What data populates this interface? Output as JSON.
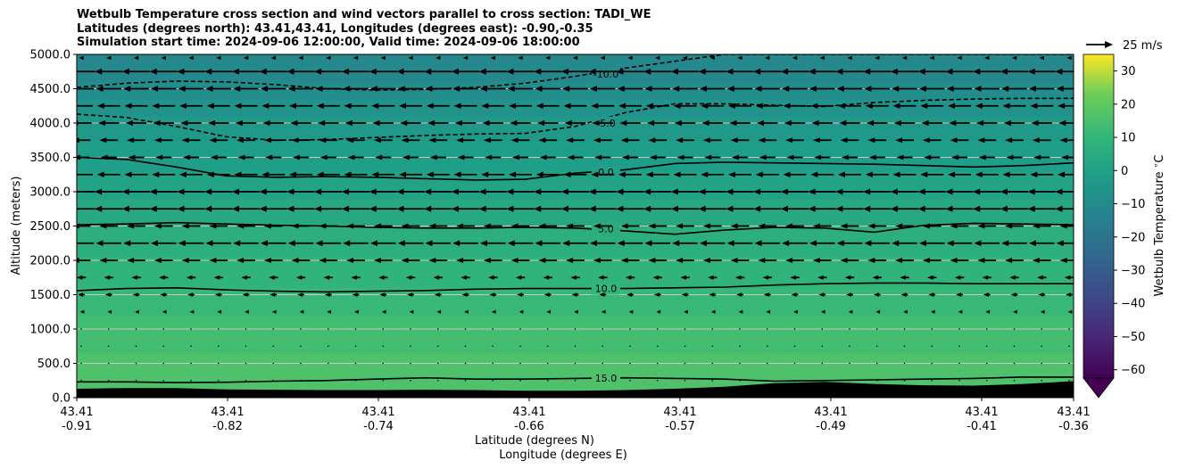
{
  "chart_data": {
    "type": "heatmap",
    "title_lines": [
      "Wetbulb Temperature cross section and wind vectors parallel to cross section: TADI_WE",
      "Latitudes (degrees north): 43.41,43.41, Longitudes (degrees east): -0.90,-0.35",
      "Simulation start time: 2024-09-06 12:00:00, Valid time: 2024-09-06 18:00:00"
    ],
    "ylabel": "Altitude (meters)",
    "xlabel_lat": "Latitude (degrees N)",
    "xlabel_lon": "Longitude (degrees E)",
    "ylim": [
      0,
      5000
    ],
    "y_ticks": [
      "0.0",
      "500.0",
      "1000.0",
      "1500.0",
      "2000.0",
      "2500.0",
      "3000.0",
      "3500.0",
      "4000.0",
      "4500.0",
      "5000.0"
    ],
    "y_tick_values": [
      0,
      500,
      1000,
      1500,
      2000,
      2500,
      3000,
      3500,
      4000,
      4500,
      5000
    ],
    "x_ticks": [
      {
        "lat": "43.41",
        "lon": "-0.91",
        "frac": 0.0
      },
      {
        "lat": "43.41",
        "lon": "-0.82",
        "frac": 0.1513
      },
      {
        "lat": "43.41",
        "lon": "-0.74",
        "frac": 0.3026
      },
      {
        "lat": "43.41",
        "lon": "-0.66",
        "frac": 0.4539
      },
      {
        "lat": "43.41",
        "lon": "-0.57",
        "frac": 0.6052
      },
      {
        "lat": "43.41",
        "lon": "-0.49",
        "frac": 0.7565
      },
      {
        "lat": "43.41",
        "lon": "-0.41",
        "frac": 0.9078
      },
      {
        "lat": "43.41",
        "lon": "-0.36",
        "frac": 1.0
      }
    ],
    "colorbar": {
      "label": "Wetbulb Temperature $^\\circ$C",
      "ticks": [
        "30",
        "20",
        "10",
        "0",
        "−10",
        "−20",
        "−30",
        "−40",
        "−50",
        "−60"
      ],
      "tick_values": [
        30,
        20,
        10,
        0,
        -10,
        -20,
        -30,
        -40,
        -50,
        -60
      ],
      "range": [
        -62.5,
        35
      ],
      "extend": "both"
    },
    "wind_key": {
      "label": "25 m/s"
    },
    "contours": [
      {
        "level": "-10.0",
        "style": "dashed",
        "alt": [
          4520,
          4580,
          4610,
          4600,
          4560,
          4500,
          4480,
          4490,
          4520,
          4580,
          4680,
          4800,
          4900,
          5000,
          5000,
          5000,
          5000,
          5000,
          5000,
          5000,
          5000
        ]
      },
      {
        "level": "-5.0",
        "style": "dashed",
        "alt": [
          4130,
          4080,
          3950,
          3800,
          3750,
          3760,
          3790,
          3820,
          3840,
          3850,
          3950,
          4150,
          4280,
          4280,
          4260,
          4240,
          4300,
          4330,
          4350,
          4360,
          4360
        ]
      },
      {
        "level": "0.0",
        "style": "solid",
        "alt": [
          3500,
          3470,
          3360,
          3230,
          3210,
          3220,
          3210,
          3190,
          3170,
          3180,
          3270,
          3320,
          3410,
          3430,
          3420,
          3410,
          3400,
          3380,
          3360,
          3380,
          3420
        ]
      },
      {
        "level": "5.0",
        "style": "solid",
        "alt": [
          2520,
          2530,
          2550,
          2530,
          2510,
          2500,
          2480,
          2470,
          2470,
          2480,
          2470,
          2430,
          2380,
          2440,
          2480,
          2470,
          2410,
          2510,
          2540,
          2530,
          2520
        ]
      },
      {
        "level": "10.0",
        "style": "solid",
        "alt": [
          1560,
          1590,
          1600,
          1570,
          1550,
          1540,
          1550,
          1560,
          1580,
          1590,
          1590,
          1590,
          1600,
          1610,
          1640,
          1660,
          1670,
          1670,
          1660,
          1660,
          1660
        ]
      },
      {
        "level": "15.0",
        "style": "solid",
        "alt": [
          230,
          230,
          220,
          225,
          240,
          250,
          270,
          290,
          270,
          270,
          280,
          290,
          280,
          270,
          240,
          250,
          260,
          270,
          280,
          300,
          300
        ]
      }
    ],
    "terrain_alt": [
      130,
      140,
      140,
      120,
      115,
      110,
      110,
      115,
      110,
      100,
      100,
      110,
      130,
      160,
      210,
      230,
      200,
      180,
      175,
      200,
      240
    ],
    "temperature_levels": [
      {
        "alt": 0,
        "t": 17
      },
      {
        "alt": 1000,
        "t": 14
      },
      {
        "alt": 1500,
        "t": 10.5
      },
      {
        "alt": 2500,
        "t": 5
      },
      {
        "alt": 3300,
        "t": 0
      },
      {
        "alt": 4000,
        "t": -4
      },
      {
        "alt": 4600,
        "t": -10
      },
      {
        "alt": 5000,
        "t": -11
      }
    ],
    "wind_rows": [
      {
        "alt": 4950,
        "speed": 2
      },
      {
        "alt": 4750,
        "speed": 12
      },
      {
        "alt": 4500,
        "speed": 11
      },
      {
        "alt": 4250,
        "speed": 10
      },
      {
        "alt": 4000,
        "speed": 9
      },
      {
        "alt": 3750,
        "speed": 8
      },
      {
        "alt": 3500,
        "speed": 7
      },
      {
        "alt": 3250,
        "speed": 10
      },
      {
        "alt": 3000,
        "speed": 12
      },
      {
        "alt": 2750,
        "speed": 12
      },
      {
        "alt": 2500,
        "speed": 8
      },
      {
        "alt": 2250,
        "speed": 11
      },
      {
        "alt": 2000,
        "speed": 8
      },
      {
        "alt": 1750,
        "speed": 4
      },
      {
        "alt": 1500,
        "speed": 3
      },
      {
        "alt": 1250,
        "speed": 1
      },
      {
        "alt": 1000,
        "speed": 0.3
      },
      {
        "alt": 750,
        "speed": 0.2
      },
      {
        "alt": 500,
        "speed": 0.1
      },
      {
        "alt": 250,
        "speed": 0.1
      }
    ],
    "grid": true
  }
}
